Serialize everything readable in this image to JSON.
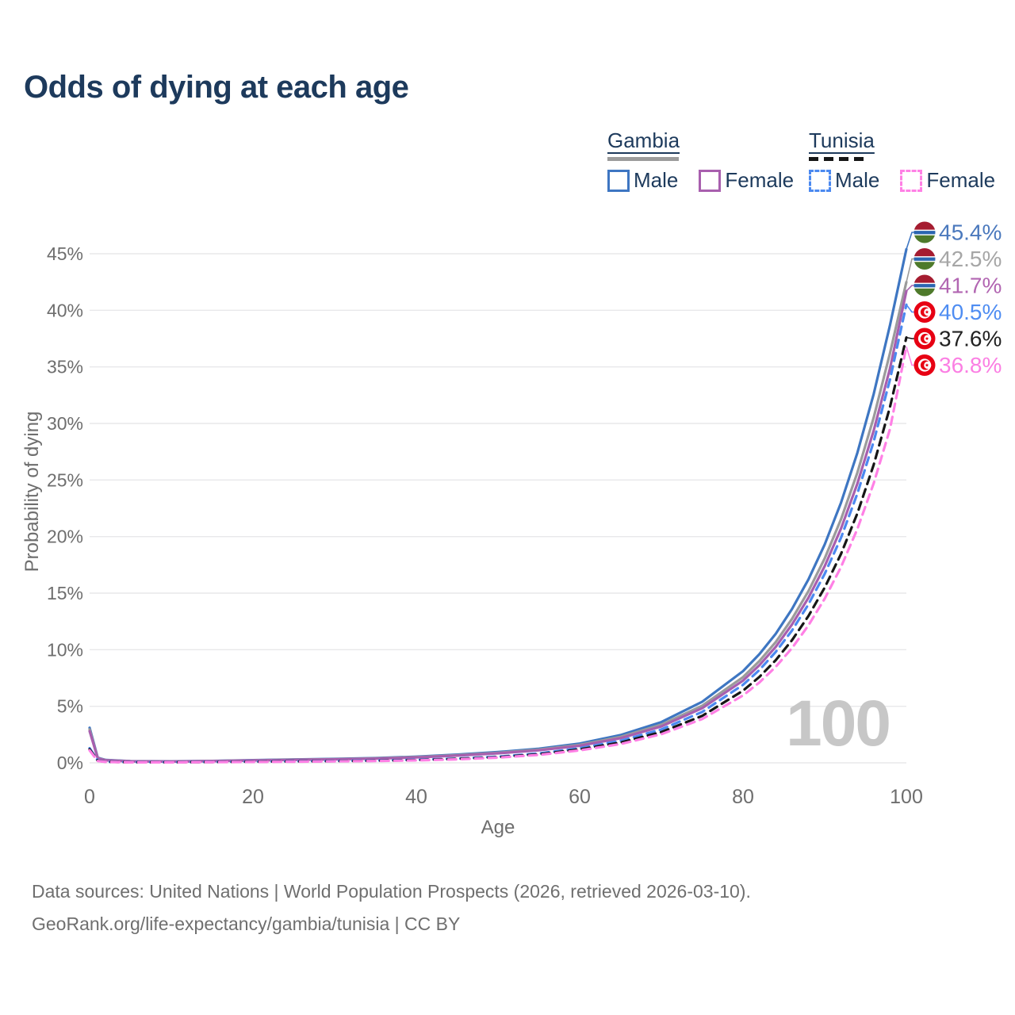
{
  "title": "Odds of dying at each age",
  "legend": {
    "groups": [
      {
        "country": "Gambia",
        "line_series": 1,
        "items": [
          {
            "label": "Male",
            "series": 0
          },
          {
            "label": "Female",
            "series": 2
          }
        ]
      },
      {
        "country": "Tunisia",
        "line_series": 4,
        "items": [
          {
            "label": "Male",
            "series": 3
          },
          {
            "label": "Female",
            "series": 5
          }
        ]
      }
    ]
  },
  "watermark_age": "100",
  "footer": {
    "line1": "Data sources: United Nations | World Population Prospects (2026, retrieved 2026-03-10).",
    "line2": "GeoRank.org/life-expectancy/gambia/tunisia | CC BY"
  },
  "chart_data": {
    "type": "line",
    "title": "Odds of dying at each age",
    "xlabel": "Age",
    "ylabel": "Probability of dying",
    "xlim": [
      0,
      100
    ],
    "ylim_pct": [
      0,
      47
    ],
    "grid": "horizontal",
    "x_ticks": [
      {
        "value": 0,
        "label": "0"
      },
      {
        "value": 20,
        "label": "20"
      },
      {
        "value": 40,
        "label": "40"
      },
      {
        "value": 60,
        "label": "60"
      },
      {
        "value": 80,
        "label": "80"
      },
      {
        "value": 100,
        "label": "100"
      }
    ],
    "y_ticks": [
      {
        "value": 0,
        "label": "0%"
      },
      {
        "value": 5,
        "label": "5%"
      },
      {
        "value": 10,
        "label": "10%"
      },
      {
        "value": 15,
        "label": "15%"
      },
      {
        "value": 20,
        "label": "20%"
      },
      {
        "value": 25,
        "label": "25%"
      },
      {
        "value": 30,
        "label": "30%"
      },
      {
        "value": 35,
        "label": "35%"
      },
      {
        "value": 40,
        "label": "40%"
      },
      {
        "value": 45,
        "label": "45%"
      }
    ],
    "ages": [
      0,
      1,
      2,
      5,
      10,
      15,
      20,
      25,
      30,
      35,
      40,
      45,
      50,
      55,
      60,
      65,
      70,
      75,
      80,
      82,
      84,
      86,
      88,
      90,
      92,
      94,
      96,
      98,
      100
    ],
    "series": [
      {
        "name": "Gambia Male",
        "country": "Gambia",
        "sex": "Male",
        "dash": false,
        "flag": "gambia",
        "color": "#3e76c2",
        "label_color": "#4b79bd",
        "end_label": "45.4%",
        "end_value": 45.4,
        "values": [
          3.1,
          0.45,
          0.25,
          0.15,
          0.13,
          0.17,
          0.24,
          0.3,
          0.35,
          0.42,
          0.55,
          0.73,
          0.95,
          1.25,
          1.7,
          2.45,
          3.6,
          5.4,
          8.1,
          9.6,
          11.4,
          13.6,
          16.2,
          19.3,
          23.0,
          27.4,
          32.6,
          38.7,
          45.4
        ]
      },
      {
        "name": "Gambia Both sexes",
        "country": "Gambia",
        "sex": "Both",
        "dash": false,
        "flag": "gambia",
        "color": "#9b9b9b",
        "label_color": "#a6a6a6",
        "end_label": "42.5%",
        "end_value": 42.5,
        "values": [
          2.95,
          0.42,
          0.23,
          0.14,
          0.12,
          0.16,
          0.22,
          0.28,
          0.33,
          0.39,
          0.51,
          0.68,
          0.89,
          1.17,
          1.59,
          2.29,
          3.37,
          5.05,
          7.58,
          8.99,
          10.67,
          12.73,
          15.16,
          18.07,
          21.53,
          25.65,
          30.52,
          36.23,
          42.5
        ]
      },
      {
        "name": "Gambia Female",
        "country": "Gambia",
        "sex": "Female",
        "dash": false,
        "flag": "gambia",
        "color": "#a85fae",
        "label_color": "#b266b2",
        "end_label": "41.7%",
        "end_value": 41.7,
        "values": [
          2.8,
          0.4,
          0.22,
          0.13,
          0.11,
          0.15,
          0.21,
          0.26,
          0.31,
          0.37,
          0.48,
          0.64,
          0.84,
          1.11,
          1.51,
          2.18,
          3.22,
          4.83,
          7.27,
          8.63,
          10.25,
          12.23,
          14.58,
          17.38,
          20.71,
          24.68,
          29.37,
          34.88,
          41.7
        ]
      },
      {
        "name": "Tunisia Male",
        "country": "Tunisia",
        "sex": "Male",
        "dash": true,
        "flag": "tunisia",
        "color": "#4b89f0",
        "label_color": "#4f8df2",
        "end_label": "40.5%",
        "end_value": 40.5,
        "values": [
          1.3,
          0.2,
          0.1,
          0.06,
          0.06,
          0.08,
          0.11,
          0.14,
          0.17,
          0.2,
          0.27,
          0.38,
          0.55,
          0.83,
          1.3,
          1.95,
          2.95,
          4.5,
          6.9,
          8.2,
          9.8,
          11.7,
          14.0,
          16.7,
          19.9,
          23.8,
          28.4,
          33.9,
          40.5
        ]
      },
      {
        "name": "Tunisia Both sexes",
        "country": "Tunisia",
        "sex": "Both",
        "dash": true,
        "flag": "tunisia",
        "color": "#161616",
        "label_color": "#222222",
        "end_label": "37.6%",
        "end_value": 37.6,
        "values": [
          1.2,
          0.18,
          0.09,
          0.05,
          0.05,
          0.07,
          0.1,
          0.12,
          0.15,
          0.18,
          0.24,
          0.34,
          0.5,
          0.76,
          1.19,
          1.79,
          2.72,
          4.15,
          6.38,
          7.59,
          9.07,
          10.84,
          12.97,
          15.49,
          18.47,
          22.05,
          26.35,
          31.47,
          37.6
        ]
      },
      {
        "name": "Tunisia Female",
        "country": "Tunisia",
        "sex": "Female",
        "dash": true,
        "flag": "tunisia",
        "color": "#ff80e5",
        "label_color": "#fb7fe3",
        "end_label": "36.8%",
        "end_value": 36.8,
        "values": [
          1.1,
          0.16,
          0.08,
          0.04,
          0.04,
          0.06,
          0.08,
          0.1,
          0.13,
          0.16,
          0.22,
          0.31,
          0.46,
          0.7,
          1.1,
          1.66,
          2.53,
          3.87,
          5.96,
          7.1,
          8.48,
          10.14,
          12.14,
          14.51,
          17.31,
          20.67,
          24.71,
          29.52,
          36.8
        ]
      }
    ],
    "flag_colors": {
      "gambia_red": "#a51c30",
      "gambia_blue": "#2b66b1",
      "gambia_green": "#4e7a2b",
      "tunisia_red": "#e70013"
    }
  }
}
